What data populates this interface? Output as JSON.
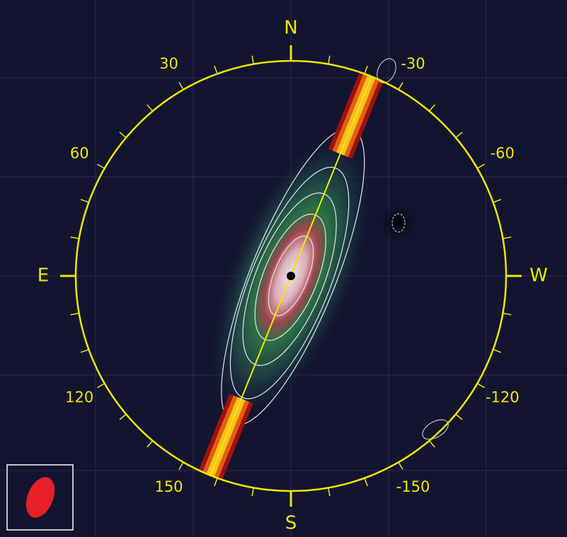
{
  "compass": {
    "cardinals": [
      "N",
      "E",
      "S",
      "W"
    ],
    "angle_labels": [
      30,
      60,
      120,
      150,
      -30,
      -60,
      -120,
      -150
    ]
  }
}
